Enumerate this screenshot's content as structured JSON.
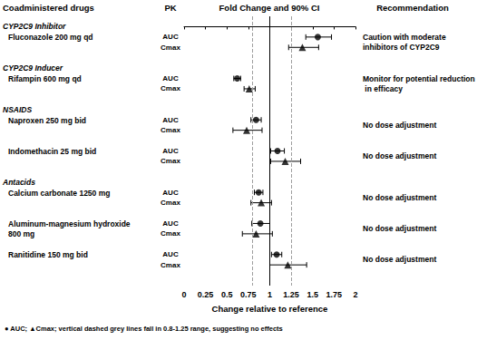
{
  "chart_data": {
    "type": "forest",
    "headers": {
      "drugs": "Coadministered drugs",
      "pk": "PK",
      "plot": "Fold Change and 90% CI",
      "recommendation": "Recommendation"
    },
    "series": [
      {
        "name": "AUC",
        "marker": "circle",
        "color": "#000000"
      },
      {
        "name": "Cmax",
        "marker": "triangle",
        "color": "#000000"
      }
    ],
    "groups": [
      {
        "name": "CYP2C9 Inhibitor",
        "drugs": [
          {
            "name": "Fluconazole 200 mg qd",
            "recommendation": "Caution with moderate inhibitors of CYP2C9",
            "pk": {
              "AUC": {
                "value": 1.56,
                "ci": [
                  1.42,
                  1.72
                ]
              },
              "Cmax": {
                "value": 1.38,
                "ci": [
                  1.22,
                  1.57
                ]
              }
            }
          }
        ]
      },
      {
        "name": "CYP2C9 Inducer",
        "drugs": [
          {
            "name": "Rifampin 600 mg qd",
            "recommendation": "Monitor for potential reduction in efficacy",
            "pk": {
              "AUC": {
                "value": 0.62,
                "ci": [
                  0.58,
                  0.66
                ]
              },
              "Cmax": {
                "value": 0.76,
                "ci": [
                  0.7,
                  0.83
                ]
              }
            }
          }
        ]
      },
      {
        "name": "NSAIDS",
        "drugs": [
          {
            "name": "Naproxen 250 mg bid",
            "recommendation": "No dose adjustment",
            "pk": {
              "AUC": {
                "value": 0.84,
                "ci": [
                  0.78,
                  0.9
                ]
              },
              "Cmax": {
                "value": 0.73,
                "ci": [
                  0.57,
                  0.91
                ]
              }
            }
          },
          {
            "name": "Indomethacin 25 mg bid",
            "recommendation": "No dose adjustment",
            "pk": {
              "AUC": {
                "value": 1.09,
                "ci": [
                  1.01,
                  1.17
                ]
              },
              "Cmax": {
                "value": 1.18,
                "ci": [
                  1.01,
                  1.36
                ]
              }
            }
          }
        ]
      },
      {
        "name": "Antacids",
        "drugs": [
          {
            "name": "Calcium carbonate 1250 mg",
            "recommendation": "No dose adjustment",
            "pk": {
              "AUC": {
                "value": 0.87,
                "ci": [
                  0.82,
                  0.92
                ]
              },
              "Cmax": {
                "value": 0.9,
                "ci": [
                  0.78,
                  1.02
                ]
              }
            }
          },
          {
            "name": "Aluminum-magnesium hydroxide 800 mg",
            "recommendation": "No dose adjustment",
            "pk": {
              "AUC": {
                "value": 0.89,
                "ci": [
                  0.79,
                  1.0
                ]
              },
              "Cmax": {
                "value": 0.84,
                "ci": [
                  0.68,
                  1.03
                ]
              }
            }
          },
          {
            "name": "Ranitidine 150 mg bid",
            "recommendation": "No dose adjustment",
            "pk": {
              "AUC": {
                "value": 1.08,
                "ci": [
                  1.02,
                  1.14
                ]
              },
              "Cmax": {
                "value": 1.21,
                "ci": [
                  1.0,
                  1.43
                ]
              }
            }
          }
        ]
      }
    ],
    "xlabel": "Change relative to reference",
    "xlim": [
      0,
      2
    ],
    "xticks": [
      0,
      0.25,
      0.5,
      0.75,
      1,
      1.25,
      1.5,
      1.75,
      2
    ],
    "ref_lines": [
      0.8,
      1.25
    ],
    "ref_line": 1,
    "tick_labels": "x",
    "note": "● AUC; ▲Cmax; vertical dashed grey lines fall in 0.8-1.25 range, suggesting no effects"
  }
}
